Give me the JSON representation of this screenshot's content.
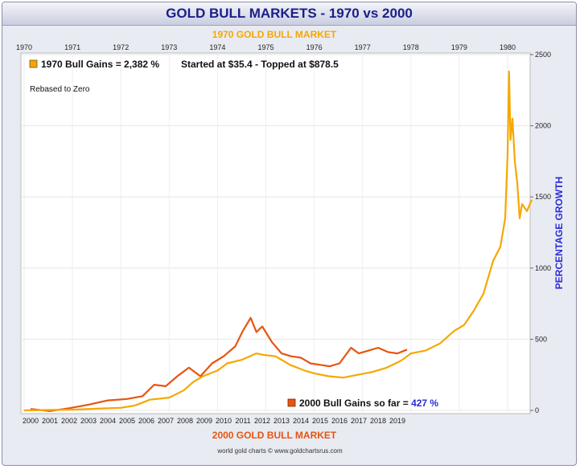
{
  "title": "GOLD BULL MARKETS - 1970 vs 2000",
  "top_axis_title": "1970 GOLD BULL MARKET",
  "bottom_axis_title": "2000 GOLD BULL MARKET",
  "right_axis_title": "PERCENTAGE GROWTH",
  "legend": {
    "bull_1970": "1970 Bull Gains = 2,382 %",
    "started_topped": "Started at $35.4 - Topped at $878.5",
    "rebased": "Rebased to Zero",
    "bull_2000_prefix": "2000 Bull Gains so far = ",
    "bull_2000_value": "427 %"
  },
  "footer": "world gold charts © www.goldchartsrus.com",
  "colors": {
    "series_1970": "#f5a800",
    "series_2000": "#e8540f",
    "title": "#1a1f8a",
    "axis_title": "#f5a800",
    "right_title": "#2a2ad8",
    "value_427": "#2a2ad8"
  },
  "chart_data": {
    "type": "line",
    "title": "GOLD BULL MARKETS - 1970 vs 2000",
    "top_x_ticks": [
      "1970",
      "1971",
      "1972",
      "1973",
      "1974",
      "1975",
      "1976",
      "1977",
      "1978",
      "1979",
      "1980"
    ],
    "bottom_x_ticks": [
      "2000",
      "2001",
      "2002",
      "2003",
      "2004",
      "2005",
      "2006",
      "2007",
      "2008",
      "2009",
      "2010",
      "2011",
      "2012",
      "2013",
      "2014",
      "2015",
      "2016",
      "2017",
      "2018",
      "2019"
    ],
    "ylabel": "PERCENTAGE GROWTH",
    "y_ticks": [
      0,
      500,
      1000,
      1500,
      2000,
      2500
    ],
    "ylim": [
      0,
      2500
    ],
    "series": [
      {
        "name": "1970 Bull Gains = 2,382 %",
        "x_axis": "top",
        "x": [
          1970.0,
          1970.5,
          1971.0,
          1971.5,
          1972.0,
          1972.3,
          1972.6,
          1973.0,
          1973.3,
          1973.5,
          1973.7,
          1974.0,
          1974.2,
          1974.5,
          1974.8,
          1974.95,
          1975.2,
          1975.5,
          1975.8,
          1976.0,
          1976.3,
          1976.6,
          1976.9,
          1977.2,
          1977.5,
          1977.8,
          1978.0,
          1978.3,
          1978.6,
          1978.9,
          1979.1,
          1979.3,
          1979.5,
          1979.7,
          1979.85,
          1979.95,
          1980.0,
          1980.03,
          1980.06,
          1980.1,
          1980.15,
          1980.2,
          1980.25,
          1980.3,
          1980.4,
          1980.5
        ],
        "values": [
          0,
          3,
          5,
          12,
          18,
          35,
          75,
          90,
          140,
          200,
          240,
          280,
          330,
          355,
          400,
          390,
          380,
          320,
          280,
          260,
          240,
          230,
          250,
          270,
          300,
          350,
          400,
          420,
          470,
          560,
          600,
          700,
          820,
          1050,
          1150,
          1350,
          1800,
          2382,
          1900,
          2050,
          1750,
          1600,
          1350,
          1450,
          1400,
          1480
        ]
      },
      {
        "name": "2000 Bull Gains so far = 427 %",
        "x_axis": "bottom",
        "x": [
          2000.0,
          2001.0,
          2002.0,
          2003.0,
          2004.0,
          2005.0,
          2005.8,
          2006.4,
          2007.0,
          2007.6,
          2008.2,
          2008.8,
          2009.4,
          2010.0,
          2010.6,
          2011.0,
          2011.4,
          2011.7,
          2012.0,
          2012.5,
          2013.0,
          2013.5,
          2014.0,
          2014.5,
          2015.0,
          2015.5,
          2016.0,
          2016.6,
          2017.0,
          2017.5,
          2018.0,
          2018.5,
          2019.0,
          2019.5
        ],
        "values": [
          10,
          -5,
          15,
          40,
          70,
          80,
          100,
          180,
          170,
          240,
          300,
          240,
          330,
          380,
          450,
          560,
          650,
          550,
          590,
          480,
          400,
          380,
          370,
          330,
          320,
          310,
          330,
          440,
          400,
          420,
          440,
          410,
          400,
          427
        ]
      }
    ]
  }
}
